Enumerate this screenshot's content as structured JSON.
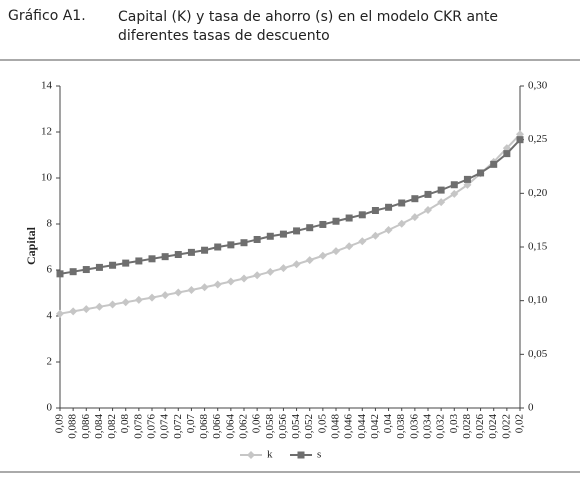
{
  "header": {
    "label": "Gráfico  A1.",
    "title": "Capital (K) y tasa de ahorro (s) en el modelo CKR ante diferentes tasas de descuento"
  },
  "chart_data": {
    "type": "line",
    "ylabel": "Capital",
    "categories": [
      "0,09",
      "0,088",
      "0,086",
      "0,084",
      "0,082",
      "0,08",
      "0,078",
      "0,076",
      "0,074",
      "0,072",
      "0,07",
      "0,068",
      "0,066",
      "0,064",
      "0,062",
      "0,06",
      "0,058",
      "0,056",
      "0,054",
      "0,052",
      "0,05",
      "0,048",
      "0,046",
      "0,044",
      "0,042",
      "0,04",
      "0,038",
      "0,036",
      "0,034",
      "0,032",
      "0,03",
      "0,028",
      "0,026",
      "0,024",
      "0,022",
      "0,02"
    ],
    "series": [
      {
        "name": "k",
        "color": "#c6c6c6",
        "marker": "diamond",
        "values": [
          4.1,
          4.2,
          4.3,
          4.4,
          4.5,
          4.6,
          4.7,
          4.8,
          4.91,
          5.02,
          5.13,
          5.25,
          5.37,
          5.5,
          5.63,
          5.77,
          5.92,
          6.08,
          6.25,
          6.43,
          6.62,
          6.82,
          7.03,
          7.25,
          7.49,
          7.74,
          8.01,
          8.3,
          8.61,
          8.95,
          9.31,
          9.7,
          10.2,
          10.7,
          11.3,
          11.9
        ]
      },
      {
        "name": "s",
        "color": "#6e6e6e",
        "marker": "square",
        "axis": "y2",
        "values": [
          0.125,
          0.127,
          0.129,
          0.131,
          0.133,
          0.135,
          0.137,
          0.139,
          0.141,
          0.143,
          0.145,
          0.147,
          0.15,
          0.152,
          0.154,
          0.157,
          0.16,
          0.162,
          0.165,
          0.168,
          0.171,
          0.174,
          0.177,
          0.18,
          0.184,
          0.187,
          0.191,
          0.195,
          0.199,
          0.203,
          0.208,
          0.213,
          0.219,
          0.227,
          0.237,
          0.25
        ]
      }
    ],
    "ylim": [
      0,
      14
    ],
    "yticks": [
      0,
      2,
      4,
      6,
      8,
      10,
      12,
      14
    ],
    "y2lim": [
      0,
      0.3
    ],
    "y2ticks": [
      0,
      {
        "value": 0.05,
        "label": "0,05"
      },
      {
        "value": 0.1,
        "label": "0,10"
      },
      {
        "value": 0.15,
        "label": "0,15"
      },
      {
        "value": 0.2,
        "label": "0,20"
      },
      {
        "value": 0.25,
        "label": "0,25"
      },
      {
        "value": 0.3,
        "label": "0,30"
      }
    ],
    "legend": "bottom"
  }
}
